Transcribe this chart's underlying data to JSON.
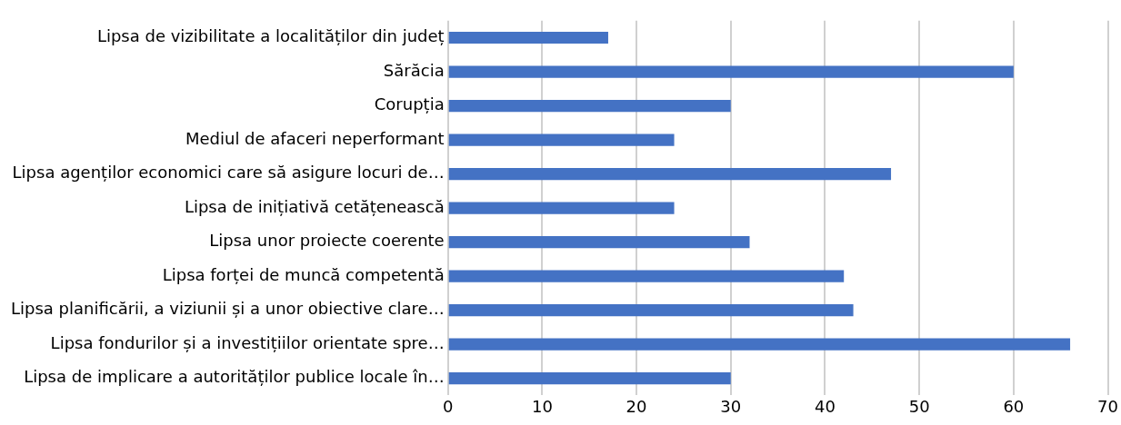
{
  "chart_data": {
    "type": "bar",
    "orientation": "horizontal",
    "categories": [
      "Lipsa de vizibilitate a localităților din județ",
      "Sărăcia",
      "Corupția",
      "Mediul de afaceri neperformant",
      "Lipsa agenților economici care să asigure locuri de…",
      "Lipsa de inițiativă cetățenească",
      "Lipsa unor proiecte coerente",
      "Lipsa forței de muncă competentă",
      "Lipsa planificării, a viziunii și a unor obiective clare…",
      "Lipsa fondurilor și a investițiilor orientate spre…",
      "Lipsa de implicare a autorităților publice locale în…"
    ],
    "values": [
      17,
      60,
      30,
      24,
      47,
      24,
      32,
      42,
      43,
      66,
      30
    ],
    "color": "#4472c4",
    "xlim": [
      0,
      70
    ],
    "xticks": [
      0,
      10,
      20,
      30,
      40,
      50,
      60,
      70
    ],
    "grid": "x"
  }
}
